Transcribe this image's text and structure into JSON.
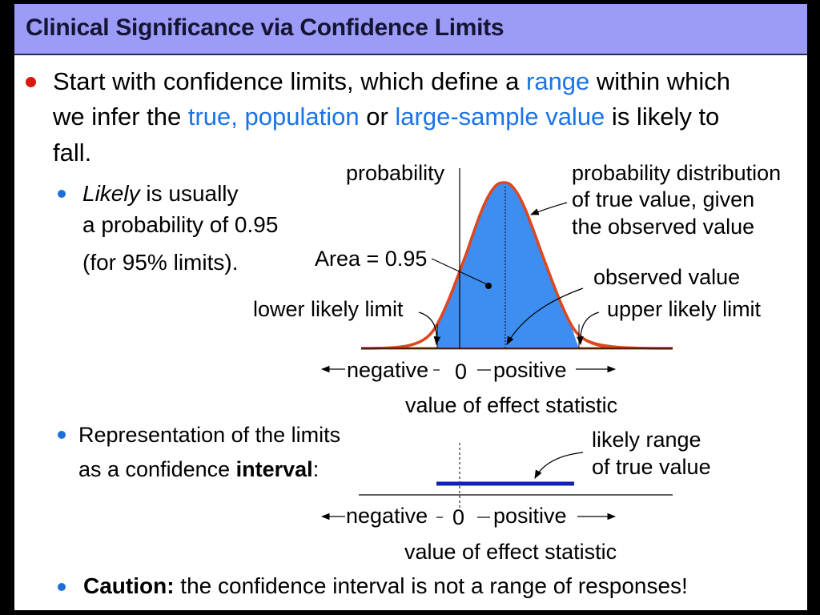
{
  "title": "Clinical Significance via Confidence Limits",
  "bullet1": {
    "line1_a": "Start with confidence limits, which define a ",
    "line1_b": "range",
    "line1_c": " within which",
    "line2_a": "we infer the ",
    "line2_b": "true, population",
    "line2_c": " or ",
    "line2_d": "large-sample value",
    "line2_e": " is likely to",
    "line3": "fall."
  },
  "sub1": {
    "likely": "Likely",
    "line1_rest": " is usually",
    "line2": "a probability of 0.95",
    "line3": "(for 95% limits)."
  },
  "diagram1": {
    "probability_label": "probability",
    "dist_label_1": "probability distribution",
    "dist_label_2": "of true value, given",
    "dist_label_3": "the observed value",
    "area_label": "Area = 0.95",
    "observed_label": "observed value",
    "lower_label": "lower likely limit",
    "upper_label": "upper likely limit",
    "negative": "negative",
    "zero": "0",
    "positive": "positive",
    "axis_title": "value of effect statistic"
  },
  "sub2": {
    "line1": "Representation of the limits",
    "line2_a": "as a confidence ",
    "line2_b": "interval",
    "line2_c": ":"
  },
  "diagram2": {
    "range_label_1": "likely range",
    "range_label_2": "of true value",
    "negative": "negative",
    "zero": "0",
    "positive": "positive",
    "axis_title": "value of effect statistic"
  },
  "caution": {
    "bold": "Caution:",
    "rest": " the confidence interval is not a range of responses!"
  },
  "colors": {
    "title_bar": "#9c9cf8",
    "curve_fill": "#3d8ef0",
    "curve_line": "#e0461e",
    "interval_bar": "#1420b4",
    "highlight_text": "#1a73e8"
  }
}
